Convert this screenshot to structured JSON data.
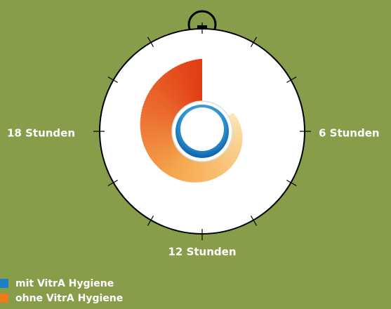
{
  "clock": {
    "labels": {
      "left": "18 Stunden",
      "right": "6 Stunden",
      "bottom": "12 Stunden"
    }
  },
  "legend": {
    "items": [
      "mit VitrA Hygiene",
      "ohne VitrA Hygiene"
    ]
  }
}
